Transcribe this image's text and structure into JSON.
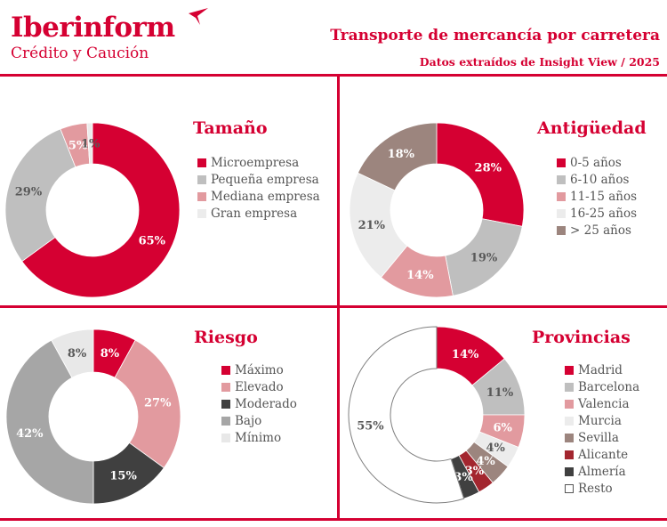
{
  "header": {
    "logo_main": "Iberinform",
    "logo_sub": "Crédito y Caución",
    "title": "Transporte de mercancía por carretera",
    "subtitle": "Datos extraídos de Insight View / 2025"
  },
  "colors": {
    "brand": "#d50032"
  },
  "chart_data": [
    {
      "type": "pie",
      "title": "Tamaño",
      "categories": [
        "Microempresa",
        "Pequeña empresa",
        "Mediana empresa",
        "Gran empresa"
      ],
      "values": [
        65,
        29,
        5,
        1
      ],
      "labels": [
        "65%",
        "29%",
        "5%",
        "1%"
      ],
      "colors": [
        "#d50032",
        "#bfbfbf",
        "#e29a9f",
        "#ececec"
      ],
      "label_colors": [
        "#ffffff",
        "#595959",
        "#ffffff",
        "#595959"
      ],
      "legend": "right"
    },
    {
      "type": "pie",
      "title": "Antigüedad",
      "categories": [
        "0-5 años",
        "6-10 años",
        "11-15 años",
        "16-25 años",
        "> 25 años"
      ],
      "values": [
        28,
        19,
        14,
        21,
        18
      ],
      "labels": [
        "28%",
        "19%",
        "14%",
        "21%",
        "18%"
      ],
      "colors": [
        "#d50032",
        "#bfbfbf",
        "#e29a9f",
        "#ececec",
        "#9c857e"
      ],
      "label_colors": [
        "#ffffff",
        "#595959",
        "#ffffff",
        "#595959",
        "#ffffff"
      ],
      "legend": "right"
    },
    {
      "type": "pie",
      "title": "Riesgo",
      "categories": [
        "Máximo",
        "Elevado",
        "Moderado",
        "Bajo",
        "Mínimo"
      ],
      "values": [
        8,
        27,
        15,
        42,
        8
      ],
      "labels": [
        "8%",
        "27%",
        "15%",
        "42%",
        "8%"
      ],
      "colors": [
        "#d50032",
        "#e29a9f",
        "#404040",
        "#a6a6a6",
        "#e8e8e8"
      ],
      "label_colors": [
        "#ffffff",
        "#ffffff",
        "#ffffff",
        "#ffffff",
        "#595959"
      ],
      "legend": "right"
    },
    {
      "type": "pie",
      "title": "Provincias",
      "categories": [
        "Madrid",
        "Barcelona",
        "Valencia",
        "Murcia",
        "Sevilla",
        "Alicante",
        "Almería",
        "Resto"
      ],
      "values": [
        14,
        11,
        6,
        4,
        4,
        3,
        3,
        55
      ],
      "labels": [
        "14%",
        "11%",
        "6%",
        "4%",
        "4%",
        "3%",
        "3%",
        "55%"
      ],
      "colors": [
        "#d50032",
        "#bfbfbf",
        "#e29a9f",
        "#ececec",
        "#9c857e",
        "#a3262f",
        "#404040",
        "#ffffff"
      ],
      "label_colors": [
        "#ffffff",
        "#595959",
        "#ffffff",
        "#595959",
        "#ffffff",
        "#ffffff",
        "#ffffff",
        "#595959"
      ],
      "legend": "right"
    }
  ]
}
